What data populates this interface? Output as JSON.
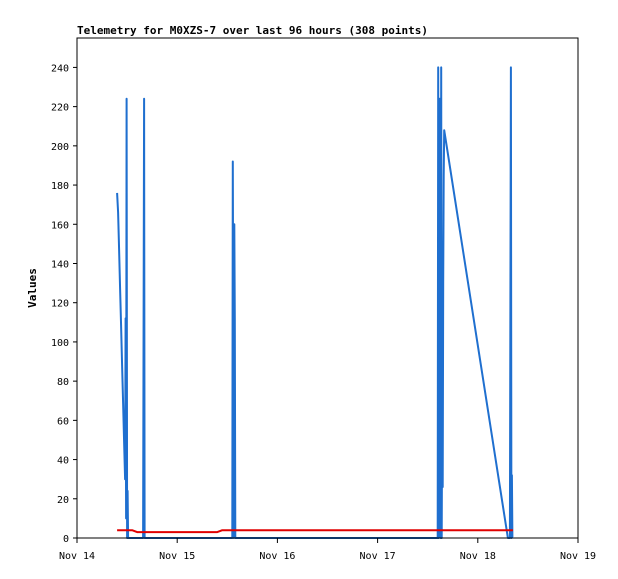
{
  "chart_data": {
    "type": "line",
    "title": "Telemetry for M0XZS-7 over last 96 hours (308 points)",
    "xlabel": "",
    "ylabel": "Values",
    "x_ticks": [
      "Nov 14",
      "Nov 15",
      "Nov 16",
      "Nov 17",
      "Nov 18",
      "Nov 19"
    ],
    "y_ticks": [
      0,
      20,
      40,
      60,
      80,
      100,
      120,
      140,
      160,
      180,
      200,
      220,
      240
    ],
    "xlim": [
      0,
      5
    ],
    "ylim": [
      0,
      255
    ],
    "grid": false,
    "legend": "none",
    "series": [
      {
        "color": "#1f6fcf",
        "points": [
          [
            0.4,
            176
          ],
          [
            0.41,
            166
          ],
          [
            0.42,
            147
          ],
          [
            0.43,
            127
          ],
          [
            0.44,
            108
          ],
          [
            0.45,
            88
          ],
          [
            0.46,
            69
          ],
          [
            0.47,
            49
          ],
          [
            0.48,
            30
          ],
          [
            0.485,
            112
          ],
          [
            0.49,
            10
          ],
          [
            0.495,
            224
          ],
          [
            0.5,
            0
          ],
          [
            0.505,
            24
          ],
          [
            0.51,
            0
          ],
          [
            0.66,
            0
          ],
          [
            0.665,
            112
          ],
          [
            0.67,
            224
          ],
          [
            0.675,
            0
          ],
          [
            1.55,
            0
          ],
          [
            1.555,
            192
          ],
          [
            1.56,
            96
          ],
          [
            1.565,
            0
          ],
          [
            1.57,
            160
          ],
          [
            1.575,
            112
          ],
          [
            1.58,
            0
          ],
          [
            3.6,
            0
          ],
          [
            3.605,
            240
          ],
          [
            3.61,
            0
          ],
          [
            3.62,
            224
          ],
          [
            3.625,
            104
          ],
          [
            3.63,
            0
          ],
          [
            3.635,
            240
          ],
          [
            3.64,
            0
          ],
          [
            3.645,
            78
          ],
          [
            3.65,
            26
          ],
          [
            3.655,
            130
          ],
          [
            3.66,
            185
          ],
          [
            3.665,
            208
          ],
          [
            4.3,
            0
          ],
          [
            4.32,
            0
          ],
          [
            4.325,
            120
          ],
          [
            4.33,
            240
          ],
          [
            4.335,
            0
          ],
          [
            4.34,
            32
          ],
          [
            4.345,
            0
          ]
        ]
      },
      {
        "color": "#e00000",
        "points": [
          [
            0.4,
            4
          ],
          [
            0.55,
            4
          ],
          [
            0.6,
            3
          ],
          [
            1.4,
            3
          ],
          [
            1.45,
            4
          ],
          [
            4.35,
            4
          ]
        ]
      },
      {
        "color": "#000000",
        "points": [
          [
            0.0,
            0
          ],
          [
            4.35,
            0
          ]
        ]
      }
    ]
  }
}
